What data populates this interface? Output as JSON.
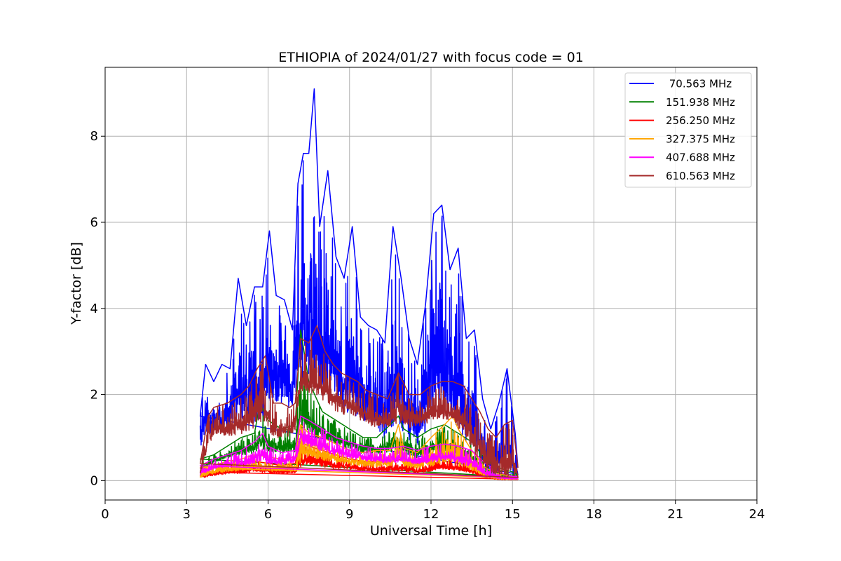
{
  "chart_data": {
    "type": "line",
    "title": "ETHIOPIA of 2024/01/27 with focus code = 01",
    "xlabel": "Universal Time [h]",
    "ylabel": "Y-factor [dB]",
    "xlim": [
      0,
      24
    ],
    "ylim": [
      -0.45,
      9.6
    ],
    "xticks": [
      0,
      3,
      6,
      9,
      12,
      15,
      18,
      21,
      24
    ],
    "xtick_labels": [
      "0",
      "3",
      "6",
      "9",
      "12",
      "15",
      "18",
      "21",
      "24"
    ],
    "yticks": [
      0,
      2,
      4,
      6,
      8
    ],
    "ytick_labels": [
      "0",
      "2",
      "4",
      "6",
      "8"
    ],
    "grid": true,
    "legend_position": "top-right",
    "series": [
      {
        "name": " 70.563 MHz",
        "color": "#0000ff",
        "x": [
          3.5,
          3.7,
          4.0,
          4.3,
          4.6,
          4.9,
          5.2,
          5.5,
          5.8,
          6.05,
          6.3,
          6.6,
          6.9,
          7.1,
          7.3,
          7.5,
          7.7,
          7.9,
          8.2,
          8.5,
          8.8,
          9.1,
          9.4,
          9.7,
          10.0,
          10.3,
          10.6,
          10.9,
          11.2,
          11.5,
          11.8,
          12.1,
          12.4,
          12.7,
          13.0,
          13.3,
          13.6,
          13.9,
          14.2,
          14.5,
          14.8,
          15.1,
          15.2
        ],
        "lower": [
          0.6,
          0.9,
          1.1,
          1.0,
          1.1,
          1.0,
          1.2,
          1.2,
          1.3,
          1.5,
          1.6,
          1.7,
          1.4,
          2.0,
          2.2,
          2.0,
          2.0,
          1.7,
          1.7,
          1.5,
          1.4,
          1.3,
          1.3,
          1.2,
          1.1,
          0.9,
          0.9,
          1.0,
          0.8,
          0.7,
          1.0,
          1.3,
          1.4,
          1.2,
          1.0,
          0.7,
          0.4,
          0.2,
          0.1,
          0.05,
          0.05,
          0.05,
          0.1
        ],
        "upper": [
          1.5,
          2.7,
          2.3,
          2.7,
          2.6,
          4.7,
          3.6,
          4.5,
          4.5,
          5.8,
          4.3,
          4.2,
          3.5,
          6.9,
          7.6,
          7.6,
          9.1,
          5.9,
          7.2,
          5.2,
          4.7,
          5.9,
          3.8,
          3.6,
          3.5,
          3.2,
          5.9,
          4.7,
          3.3,
          2.7,
          4.1,
          6.2,
          6.4,
          4.9,
          5.4,
          3.3,
          3.5,
          1.9,
          1.2,
          1.8,
          2.6,
          1.1,
          0.3
        ]
      },
      {
        "name": "151.938 MHz",
        "color": "#008000",
        "x": [
          3.5,
          4.0,
          4.5,
          5.0,
          5.5,
          5.7,
          6.0,
          6.5,
          7.0,
          7.2,
          7.5,
          8.0,
          8.5,
          9.0,
          9.5,
          10.0,
          10.5,
          10.8,
          11.0,
          11.5,
          12.0,
          12.5,
          13.0,
          13.5,
          14.0,
          14.5,
          15.0,
          15.2
        ],
        "lower": [
          0.2,
          0.4,
          0.5,
          0.55,
          0.6,
          0.7,
          0.6,
          0.6,
          0.6,
          1.0,
          1.0,
          0.9,
          0.8,
          0.7,
          0.6,
          0.6,
          0.6,
          0.7,
          0.6,
          0.5,
          0.6,
          0.6,
          0.5,
          0.4,
          0.1,
          0.05,
          0.05,
          0.05
        ],
        "upper": [
          0.5,
          0.6,
          0.8,
          1.0,
          1.1,
          1.8,
          1.4,
          1.2,
          1.3,
          3.5,
          2.3,
          1.6,
          1.4,
          1.2,
          1.0,
          1.0,
          1.3,
          1.5,
          1.2,
          1.0,
          1.2,
          1.3,
          1.1,
          0.9,
          0.5,
          0.3,
          0.2,
          0.15
        ]
      },
      {
        "name": "256.250 MHz",
        "color": "#ff0000",
        "x": [
          3.5,
          4.0,
          4.5,
          5.0,
          5.5,
          6.0,
          6.5,
          7.0,
          7.2,
          7.5,
          8.0,
          8.5,
          9.0,
          9.5,
          10.0,
          10.5,
          11.0,
          11.5,
          12.0,
          12.5,
          13.0,
          13.5,
          14.0,
          14.5,
          15.0,
          15.2
        ],
        "lower": [
          0.05,
          0.1,
          0.15,
          0.15,
          0.2,
          0.15,
          0.15,
          0.15,
          0.3,
          0.35,
          0.3,
          0.25,
          0.25,
          0.2,
          0.2,
          0.2,
          0.2,
          0.15,
          0.2,
          0.25,
          0.2,
          0.15,
          0.05,
          0.02,
          0.02,
          0.02
        ],
        "upper": [
          0.2,
          0.3,
          0.35,
          0.4,
          0.45,
          0.4,
          0.35,
          0.4,
          0.9,
          0.8,
          0.7,
          0.6,
          0.5,
          0.45,
          0.45,
          0.45,
          0.5,
          0.4,
          0.5,
          0.55,
          0.5,
          0.4,
          0.15,
          0.08,
          0.05,
          0.05
        ]
      },
      {
        "name": "327.375 MHz",
        "color": "#ffa500",
        "x": [
          3.5,
          4.0,
          4.5,
          5.0,
          5.5,
          6.0,
          6.5,
          7.0,
          7.2,
          7.5,
          8.0,
          8.5,
          9.0,
          9.5,
          10.0,
          10.5,
          10.8,
          11.0,
          11.5,
          12.0,
          12.5,
          12.8,
          13.0,
          13.5,
          14.0,
          14.5,
          15.0,
          15.2
        ],
        "lower": [
          0.05,
          0.15,
          0.2,
          0.2,
          0.25,
          0.2,
          0.2,
          0.2,
          0.4,
          0.5,
          0.45,
          0.4,
          0.35,
          0.3,
          0.3,
          0.3,
          0.5,
          0.3,
          0.25,
          0.3,
          0.35,
          0.3,
          0.3,
          0.2,
          0.05,
          0.02,
          0.02,
          0.02
        ],
        "upper": [
          0.3,
          0.35,
          0.45,
          0.5,
          0.6,
          0.55,
          0.5,
          0.55,
          1.3,
          1.1,
          1.0,
          0.85,
          0.7,
          0.65,
          0.7,
          0.7,
          1.3,
          0.75,
          0.65,
          1.0,
          1.3,
          1.5,
          1.2,
          0.7,
          0.3,
          0.15,
          0.1,
          0.1
        ]
      },
      {
        "name": "407.688 MHz",
        "color": "#ff00ff",
        "x": [
          3.5,
          4.0,
          4.5,
          5.0,
          5.5,
          5.8,
          6.0,
          6.5,
          7.0,
          7.2,
          7.5,
          8.0,
          8.5,
          9.0,
          9.5,
          10.0,
          10.5,
          11.0,
          11.5,
          12.0,
          12.5,
          13.0,
          13.5,
          14.0,
          14.5,
          15.0,
          15.2
        ],
        "lower": [
          0.1,
          0.25,
          0.3,
          0.3,
          0.35,
          0.45,
          0.35,
          0.35,
          0.4,
          0.8,
          0.75,
          0.65,
          0.55,
          0.5,
          0.45,
          0.4,
          0.4,
          0.4,
          0.35,
          0.4,
          0.45,
          0.4,
          0.3,
          0.1,
          0.03,
          0.03,
          0.03
        ],
        "upper": [
          0.35,
          0.5,
          0.6,
          0.7,
          0.9,
          1.1,
          0.8,
          0.65,
          0.7,
          1.5,
          1.4,
          1.2,
          1.0,
          0.9,
          0.8,
          0.75,
          0.75,
          0.8,
          0.7,
          0.8,
          0.85,
          0.8,
          0.7,
          0.4,
          0.2,
          0.1,
          0.1
        ]
      },
      {
        "name": "610.563 MHz",
        "color": "#a52a2a",
        "x": [
          3.5,
          3.8,
          4.0,
          4.5,
          5.0,
          5.3,
          5.6,
          5.9,
          6.2,
          6.5,
          6.8,
          7.0,
          7.2,
          7.5,
          7.8,
          8.1,
          8.4,
          8.7,
          9.0,
          9.3,
          9.6,
          10.0,
          10.4,
          10.8,
          11.2,
          11.6,
          12.0,
          12.4,
          12.8,
          13.2,
          13.5,
          13.8,
          14.1,
          14.4,
          14.7,
          15.0,
          15.2
        ],
        "lower": [
          0.1,
          0.8,
          1.0,
          1.0,
          1.0,
          1.1,
          1.2,
          1.3,
          0.9,
          1.0,
          1.0,
          1.1,
          2.0,
          2.0,
          1.9,
          1.8,
          1.6,
          1.5,
          1.5,
          1.4,
          1.3,
          1.2,
          1.2,
          1.3,
          1.2,
          1.2,
          1.3,
          1.4,
          1.3,
          1.0,
          0.7,
          0.4,
          0.2,
          0.1,
          0.05,
          0.05,
          0.05
        ],
        "upper": [
          0.4,
          1.5,
          1.7,
          1.8,
          2.0,
          2.2,
          2.6,
          2.9,
          1.8,
          1.8,
          1.7,
          1.8,
          3.3,
          3.2,
          3.6,
          3.0,
          2.7,
          2.5,
          2.4,
          2.3,
          2.1,
          2.0,
          1.9,
          2.5,
          2.0,
          2.0,
          2.2,
          2.3,
          2.3,
          2.2,
          1.9,
          1.6,
          1.2,
          1.0,
          1.3,
          1.4,
          0.3
        ]
      }
    ]
  }
}
